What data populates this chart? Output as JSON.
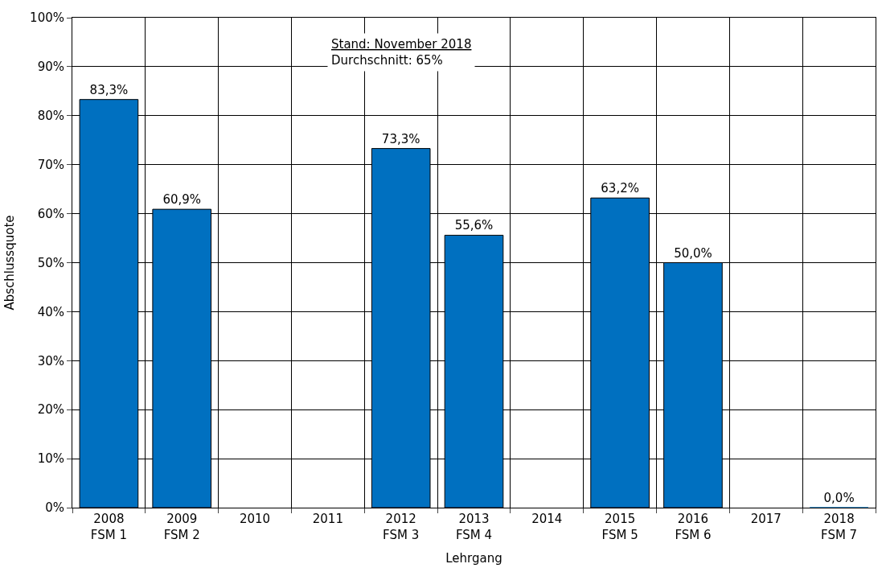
{
  "chart_data": {
    "type": "bar",
    "categories": [
      "2008\nFSM 1",
      "2009\nFSM 2",
      "2010",
      "2011",
      "2012\nFSM 3",
      "2013\nFSM 4",
      "2014",
      "2015\nFSM 5",
      "2016\nFSM 6",
      "2017",
      "2018\nFSM 7"
    ],
    "values": [
      83.3,
      60.9,
      null,
      null,
      73.3,
      55.6,
      null,
      63.2,
      50.0,
      null,
      0.0
    ],
    "value_labels": [
      "83,3%",
      "60,9%",
      null,
      null,
      "73,3%",
      "55,6%",
      null,
      "63,2%",
      "50,0%",
      null,
      "0,0%"
    ],
    "color": "#0070c0",
    "xlabel": "Lehrgang",
    "ylabel": "Abschlussquote",
    "ylim": [
      0,
      100
    ],
    "yticks": [
      {
        "value": 0,
        "label": "0%"
      },
      {
        "value": 10,
        "label": "10%"
      },
      {
        "value": 20,
        "label": "20%"
      },
      {
        "value": 30,
        "label": "30%"
      },
      {
        "value": 40,
        "label": "40%"
      },
      {
        "value": 50,
        "label": "50%"
      },
      {
        "value": 60,
        "label": "60%"
      },
      {
        "value": 70,
        "label": "70%"
      },
      {
        "value": 80,
        "label": "80%"
      },
      {
        "value": 90,
        "label": "90%"
      },
      {
        "value": 100,
        "label": "100%"
      }
    ],
    "grid": true,
    "annotations": [
      "Stand: November 2018",
      "Durchschnitt: 65%"
    ]
  }
}
